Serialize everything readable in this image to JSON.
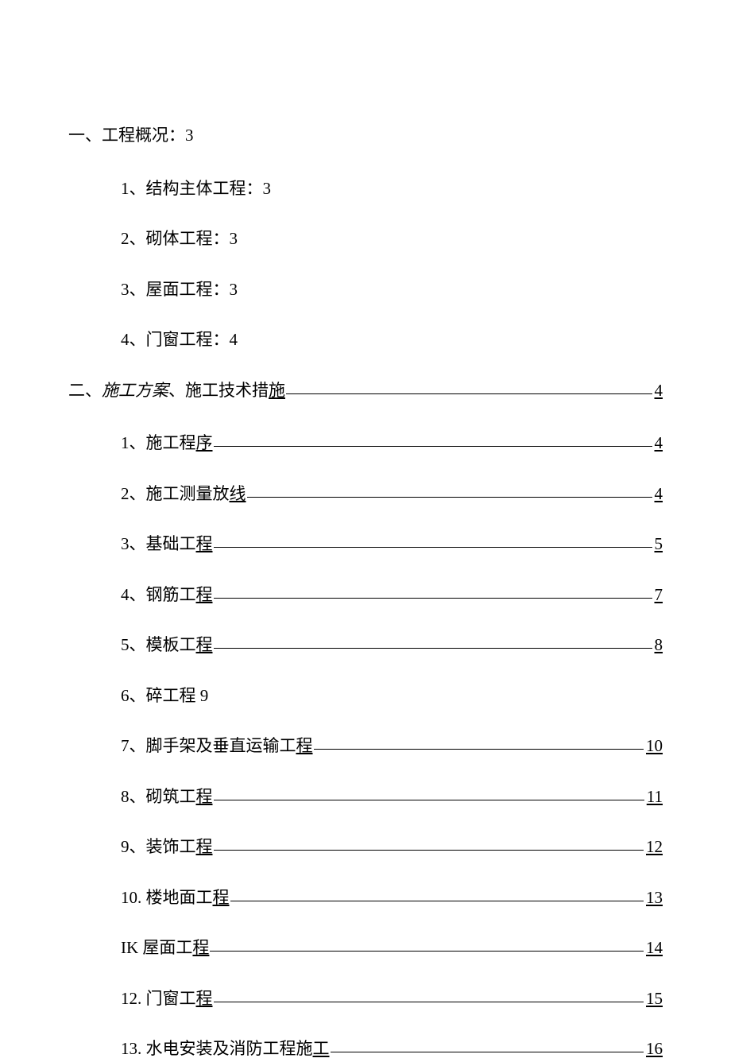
{
  "colors": {
    "background": "#ffffff",
    "text": "#000000",
    "leader": "#000000"
  },
  "typography": {
    "font_family": "SimSun",
    "font_size": 21,
    "line_spacing": 35
  },
  "toc": {
    "section1": {
      "heading": "一、工程概况：3",
      "items": [
        {
          "label": "1、结构主体工程：3",
          "page": null
        },
        {
          "label": "2、砌体工程：3",
          "page": null
        },
        {
          "label": "3、屋面工程：3",
          "page": null
        },
        {
          "label": "4、门窗工程：4",
          "page": null
        }
      ]
    },
    "section2": {
      "heading_prefix": "二、",
      "heading_italic": "施工方案",
      "heading_rest": "、施工技术措",
      "heading_underline": "施",
      "page": "4",
      "items": [
        {
          "label_prefix": "1、施工程",
          "label_underline": "序",
          "page": "4"
        },
        {
          "label_prefix": "2、施工测量放",
          "label_underline": "线",
          "page": "4"
        },
        {
          "label_prefix": "3、基础工",
          "label_underline": "程",
          "page": "5"
        },
        {
          "label_prefix": "4、钢筋工",
          "label_underline": "程",
          "page": "7"
        },
        {
          "label_prefix": "5、模板工",
          "label_underline": "程",
          "page": "8"
        },
        {
          "label_prefix": "6、碎工程 9",
          "label_underline": "",
          "page": null
        },
        {
          "label_prefix": "7、脚手架及垂直运输工",
          "label_underline": "程",
          "page": "10"
        },
        {
          "label_prefix": "8、砌筑工",
          "label_underline": "程",
          "page": "11"
        },
        {
          "label_prefix": "9、装饰工",
          "label_underline": "程",
          "page": "12"
        },
        {
          "label_prefix": "10. 楼地面工",
          "label_underline": "程",
          "page": "13"
        },
        {
          "label_prefix": "IK 屋面工",
          "label_underline": "程",
          "page": "14"
        },
        {
          "label_prefix": "12. 门窗工",
          "label_underline": "程",
          "page": "15"
        },
        {
          "label_prefix": "13. 水电安装及消防工程施",
          "label_underline": "工",
          "page": "16"
        }
      ]
    }
  }
}
